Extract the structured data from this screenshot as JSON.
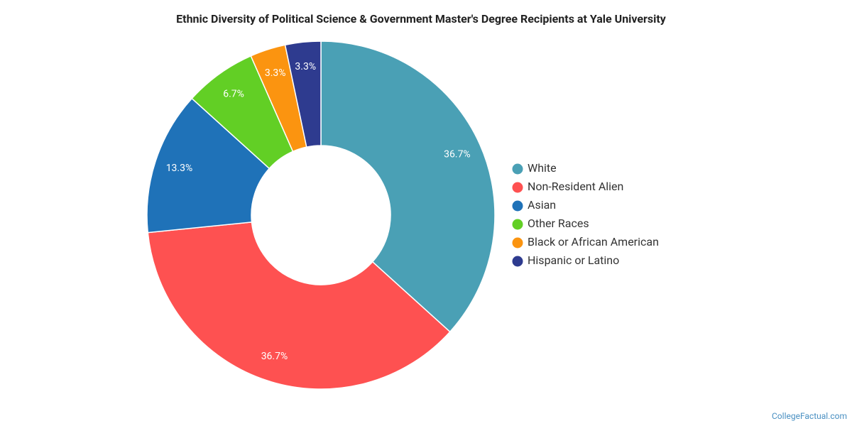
{
  "chart_data": {
    "type": "pie",
    "title": "Ethnic Diversity of Political Science & Government Master's Degree Recipients at Yale University",
    "categories": [
      "White",
      "Non-Resident Alien",
      "Asian",
      "Other Races",
      "Black or African American",
      "Hispanic or Latino"
    ],
    "values": [
      36.7,
      36.7,
      13.3,
      6.7,
      3.3,
      3.3
    ],
    "value_labels": [
      "36.7%",
      "36.7%",
      "13.3%",
      "6.7%",
      "3.3%",
      "3.3%"
    ],
    "colors": [
      "#4aa0b5",
      "#fe5151",
      "#1f72b8",
      "#62cf25",
      "#fb9410",
      "#2e3b8f"
    ],
    "donut": true,
    "legend": "right",
    "source": "CollegeFactual.com"
  }
}
